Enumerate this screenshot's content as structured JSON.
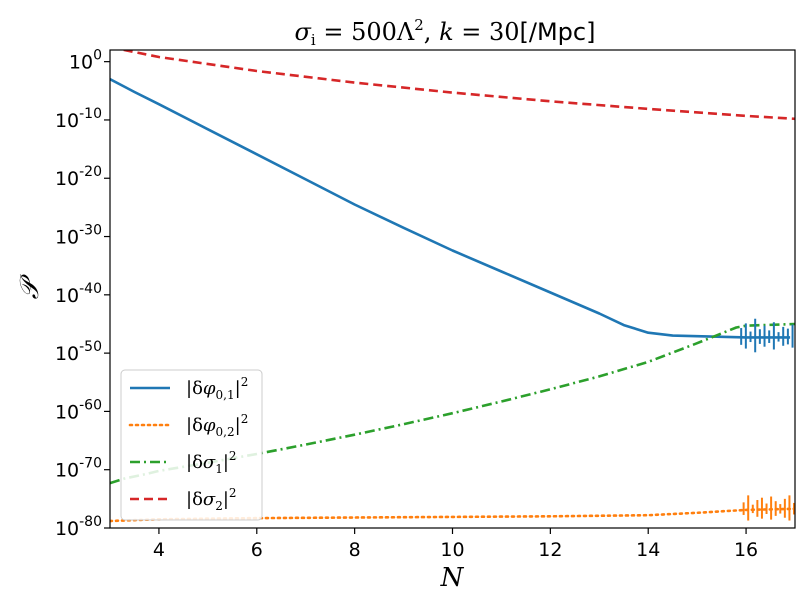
{
  "chart_data": {
    "type": "line",
    "title": "σ_i = 500Λ², k = 30[/Mpc]",
    "xlabel": "N",
    "ylabel": "𝒫",
    "xlim": [
      3,
      17
    ],
    "ylim_log10": [
      -80,
      2
    ],
    "yscale": "log",
    "grid": false,
    "legend_position": "lower-left",
    "x_ticks": [
      4,
      6,
      8,
      10,
      12,
      14,
      16
    ],
    "y_ticks_log10": [
      0,
      -10,
      -20,
      -30,
      -40,
      -50,
      -60,
      -70,
      -80
    ],
    "series": [
      {
        "name": "|δφ_{0,1}|²",
        "color": "#1f77b4",
        "style": "solid",
        "x": [
          3,
          3.5,
          4,
          5,
          6,
          7,
          8,
          9,
          10,
          11,
          12,
          13,
          13.5,
          14,
          14.5,
          15,
          16,
          16.9
        ],
        "log10_y": [
          -3,
          -5.2,
          -7.3,
          -11.6,
          -15.9,
          -20.2,
          -24.5,
          -28.5,
          -32.4,
          -36.0,
          -39.6,
          -43.2,
          -45.2,
          -46.5,
          -47.0,
          -47.1,
          -47.3,
          -47.3
        ]
      },
      {
        "name": "|δφ_{0,2}|²",
        "color": "#ff7f0e",
        "style": "dotted",
        "x": [
          3,
          4,
          6,
          8,
          10,
          12,
          14,
          15,
          16,
          17
        ],
        "log10_y": [
          -78.8,
          -78.5,
          -78.3,
          -78.2,
          -78.1,
          -78.0,
          -77.8,
          -77.4,
          -76.9,
          -76.7
        ]
      },
      {
        "name": "|δσ_1|²",
        "color": "#2ca02c",
        "style": "dashdot",
        "x": [
          3,
          3.3,
          3.7,
          4,
          4.5,
          5,
          6,
          7,
          8,
          9,
          10,
          11,
          12,
          13,
          14,
          15,
          15.8,
          16,
          17
        ],
        "log10_y": [
          -72.3,
          -71.5,
          -70.8,
          -70.2,
          -69.5,
          -68.8,
          -67.3,
          -65.7,
          -64.0,
          -62.2,
          -60.3,
          -58.3,
          -56.2,
          -54.0,
          -51.5,
          -48.3,
          -45.6,
          -45.3,
          -45.0
        ]
      },
      {
        "name": "|δσ_2|²",
        "color": "#d62728",
        "style": "dashed",
        "x": [
          3,
          4,
          6,
          8,
          10,
          12,
          14,
          16,
          17
        ],
        "log10_y": [
          2.5,
          0.8,
          -1.6,
          -3.6,
          -5.3,
          -6.8,
          -8.1,
          -9.3,
          -9.8
        ]
      }
    ]
  }
}
